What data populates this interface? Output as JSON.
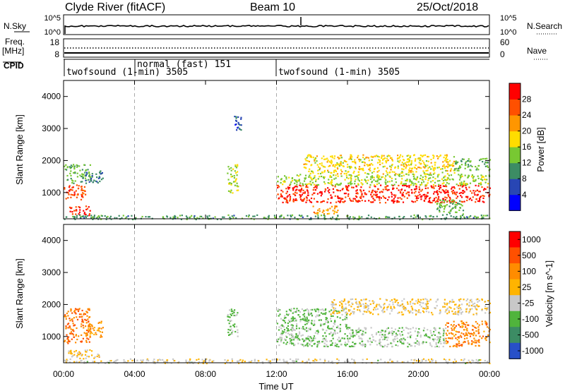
{
  "header": {
    "site": "Clyde River (fitACF)",
    "beam": "Beam 10",
    "date": "25/Oct/2018"
  },
  "strips": {
    "nsky_label": "N.Sky",
    "nsky_ticks": [
      "10^5",
      "10^0"
    ],
    "nsearch_label": "N.Search",
    "nsearch_ticks": [
      "10^5",
      "10^0"
    ],
    "freq_label_1": "Freq.",
    "freq_label_2": "[MHz]",
    "freq_ticks": [
      "18",
      "8"
    ],
    "nave_label": "Nave",
    "nave_ticks": [
      "60",
      "0"
    ],
    "cpid_label": "CPID",
    "cpid_segments": [
      {
        "label": "twofsound (1-min) 3505",
        "start_hour": 0
      },
      {
        "label": "normal (fast) 151",
        "start_hour": 4
      },
      {
        "label": "twofsound (1-min) 3505",
        "start_hour": 12
      }
    ]
  },
  "x_axis": {
    "label": "Time UT",
    "ticks": [
      "00:00",
      "04:00",
      "08:00",
      "12:00",
      "16:00",
      "20:00",
      "00:00"
    ],
    "range_hours": [
      0,
      24
    ]
  },
  "chart_data": [
    {
      "type": "heatmap",
      "title": "",
      "xlabel": "Time UT",
      "ylabel": "Slant Range [km]",
      "xlim": [
        0,
        24
      ],
      "ylim": [
        180,
        4500
      ],
      "yticks": [
        1000,
        2000,
        3000,
        4000
      ],
      "colorbar": {
        "label": "Power [dB]",
        "ticks": [
          "4",
          "8",
          "12",
          "16",
          "20",
          "24",
          "28"
        ],
        "range": [
          0,
          30
        ],
        "colors": [
          "#0000ff",
          "#2846b4",
          "#3c8c64",
          "#78c832",
          "#ffdc00",
          "#ff9600",
          "#ff5000",
          "#ff0000"
        ]
      },
      "regions": [
        {
          "t": [
            0.0,
            1.2
          ],
          "r": [
            800,
            1300
          ],
          "v": 25
        },
        {
          "t": [
            0.0,
            1.5
          ],
          "r": [
            1300,
            1900
          ],
          "v": 12
        },
        {
          "t": [
            0.3,
            1.5
          ],
          "r": [
            300,
            600
          ],
          "v": 27
        },
        {
          "t": [
            1.2,
            2.2
          ],
          "r": [
            1300,
            1700
          ],
          "v": 8
        },
        {
          "t": [
            9.2,
            9.8
          ],
          "r": [
            1000,
            1900
          ],
          "v": 14
        },
        {
          "t": [
            9.6,
            10.0
          ],
          "r": [
            2900,
            3400
          ],
          "v": 6
        },
        {
          "t": [
            12.0,
            24.0
          ],
          "r": [
            700,
            1250
          ],
          "v": 27
        },
        {
          "t": [
            12.0,
            24.0
          ],
          "r": [
            1250,
            1600
          ],
          "v": 14
        },
        {
          "t": [
            13.5,
            22.0
          ],
          "r": [
            1600,
            2200
          ],
          "v": 17
        },
        {
          "t": [
            22.0,
            24.0
          ],
          "r": [
            1700,
            2100
          ],
          "v": 12
        },
        {
          "t": [
            14.0,
            15.5
          ],
          "r": [
            350,
            600
          ],
          "v": 20
        },
        {
          "t": [
            21.0,
            22.5
          ],
          "r": [
            300,
            800
          ],
          "v": 12
        },
        {
          "t": [
            0.0,
            24.0
          ],
          "r": [
            180,
            320
          ],
          "v": 10
        }
      ]
    },
    {
      "type": "heatmap",
      "title": "",
      "xlabel": "Time UT",
      "ylabel": "Slant Range [km]",
      "xlim": [
        0,
        24
      ],
      "ylim": [
        180,
        4500
      ],
      "yticks": [
        1000,
        2000,
        3000,
        4000
      ],
      "colorbar": {
        "label": "Velocity [m s^-1]",
        "ticks": [
          "1000",
          "500",
          "100",
          "25",
          "-25",
          "-100",
          "-500",
          "-1000"
        ],
        "range": [
          -1000,
          1000
        ],
        "colors": [
          "#2850c8",
          "#3c8c64",
          "#50b43c",
          "#c8c8c8",
          "#ffb400",
          "#ff8c00",
          "#ff5000",
          "#ff0000"
        ]
      },
      "regions": [
        {
          "t": [
            0.0,
            1.5
          ],
          "r": [
            800,
            1900
          ],
          "v": 500
        },
        {
          "t": [
            1.2,
            2.2
          ],
          "r": [
            1000,
            1500
          ],
          "v": 300
        },
        {
          "t": [
            0.2,
            2.0
          ],
          "r": [
            300,
            600
          ],
          "v": 80
        },
        {
          "t": [
            9.2,
            9.8
          ],
          "r": [
            1000,
            1900
          ],
          "v": -300
        },
        {
          "t": [
            12.0,
            16.0
          ],
          "r": [
            700,
            1900
          ],
          "v": -300
        },
        {
          "t": [
            16.0,
            21.5
          ],
          "r": [
            700,
            1300
          ],
          "v": -200
        },
        {
          "t": [
            15.0,
            24.0
          ],
          "r": [
            1700,
            2200
          ],
          "v": 0
        },
        {
          "t": [
            21.5,
            24.0
          ],
          "r": [
            700,
            1500
          ],
          "v": 400
        },
        {
          "t": [
            0.0,
            24.0
          ],
          "r": [
            180,
            320
          ],
          "v": -80
        }
      ]
    }
  ]
}
